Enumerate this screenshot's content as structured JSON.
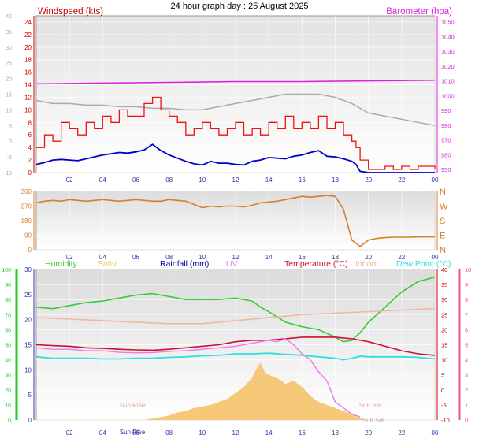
{
  "page": {
    "title": "24 hour graph day : 25 August 2025"
  },
  "colors": {
    "wind": "#ee1111",
    "gust_line": "#0000cc",
    "baro": "#dd22dd",
    "baro_grey": "#aaaaaa",
    "direction": "#d77f25",
    "humidity": "#33cc33",
    "solar": "#f5c060",
    "rain": "#0000aa",
    "uv": "#ee77ee",
    "temperature": "#cc1133",
    "indoor": "#f0b8a0",
    "dewpoint": "#33dddd",
    "axis_blue": "#3333aa",
    "axis_green": "#22cc22",
    "axis_red": "#cc0000",
    "axis_pink": "#ee5599",
    "axis_orange": "#d77f25"
  },
  "chart_data": [
    {
      "type": "line",
      "panel": "wind",
      "title": "Windspeed (kts)",
      "ylabel_right": "Barometer (hpa)",
      "x_ticks": [
        "02",
        "04",
        "06",
        "08",
        "10",
        "12",
        "14",
        "16",
        "18",
        "20",
        "22",
        "00"
      ],
      "y_left_ticks": [
        "24",
        "22",
        "20",
        "18",
        "16",
        "14",
        "12",
        "10",
        "8",
        "6",
        "4",
        "2",
        "0"
      ],
      "y_outer_ticks": [
        "40",
        "35",
        "30",
        "25",
        "20",
        "15",
        "10",
        "5",
        "0",
        "-5",
        "-10"
      ],
      "y_right_ticks": [
        "1050",
        "1040",
        "1030",
        "1020",
        "1010",
        "1000",
        "990",
        "980",
        "970",
        "960",
        "950"
      ],
      "ylim_left": [
        0,
        25
      ],
      "ylim_right": [
        948,
        1054
      ],
      "xlim_hours": [
        0,
        24
      ],
      "series": [
        {
          "key": "gust",
          "x": [
            0,
            0.5,
            1,
            1.5,
            2,
            2.5,
            3,
            3.5,
            4,
            4.5,
            5,
            5.5,
            6,
            6.5,
            7,
            7.5,
            8,
            8.5,
            9,
            9.5,
            10,
            10.5,
            11,
            11.5,
            12,
            12.5,
            13,
            13.5,
            14,
            14.5,
            15,
            15.5,
            16,
            16.5,
            17,
            17.5,
            18,
            18.5,
            19,
            19.25,
            19.5,
            20,
            20.5,
            21,
            21.5,
            22,
            22.5,
            23,
            23.5,
            24
          ],
          "values": [
            4,
            6,
            5,
            8,
            7,
            6,
            8,
            7,
            9,
            8,
            10,
            9,
            9,
            11,
            12,
            10,
            9,
            8,
            6,
            7,
            8,
            7,
            6,
            7,
            8,
            6,
            7,
            6,
            8,
            7,
            9,
            7,
            8,
            7,
            9,
            7,
            8,
            6,
            5,
            4,
            2,
            0.5,
            0.5,
            1,
            0.5,
            1,
            0.5,
            1,
            1,
            0.5
          ]
        },
        {
          "key": "average",
          "x": [
            0,
            0.5,
            1,
            1.5,
            2,
            2.5,
            3,
            3.5,
            4,
            4.5,
            5,
            5.5,
            6,
            6.5,
            7,
            7.5,
            8,
            8.5,
            9,
            9.5,
            10,
            10.5,
            11,
            11.5,
            12,
            12.5,
            13,
            13.5,
            14,
            14.5,
            15,
            15.5,
            16,
            16.5,
            17,
            17.5,
            18,
            18.5,
            19,
            19.25,
            19.5,
            20,
            20.5,
            21,
            21.5,
            22,
            22.5,
            23,
            23.5,
            24
          ],
          "values": [
            1.3,
            1.6,
            2,
            2.1,
            2,
            1.9,
            2.2,
            2.5,
            2.8,
            3,
            3.2,
            3.1,
            3.3,
            3.6,
            4.5,
            3.5,
            2.8,
            2.3,
            1.8,
            1.4,
            1.2,
            1.8,
            1.5,
            1.5,
            1.3,
            1.2,
            1.8,
            2,
            2.4,
            2.3,
            2.2,
            2.6,
            2.8,
            3.2,
            3.5,
            2.6,
            2.5,
            2.2,
            1.8,
            1.3,
            0.2,
            0,
            0,
            0,
            0,
            0,
            0,
            0,
            0,
            0
          ]
        },
        {
          "key": "barometer",
          "axis": "right",
          "x": [
            0,
            4,
            8,
            12,
            16,
            20,
            24
          ],
          "values": [
            1008,
            1008.5,
            1009,
            1009.5,
            1009.5,
            1010,
            1010.5
          ]
        },
        {
          "key": "grey",
          "axis": "outer",
          "x": [
            0,
            1,
            2,
            3,
            4,
            5,
            6,
            7,
            8,
            9,
            10,
            11,
            12,
            13,
            14,
            15,
            16,
            17,
            18,
            19,
            20,
            21,
            22,
            23,
            24
          ],
          "values": [
            13,
            12,
            12,
            11.5,
            11.5,
            11,
            11,
            10.5,
            10.5,
            10,
            10,
            11,
            12,
            13,
            14,
            15,
            15,
            15,
            14,
            12,
            9,
            8,
            7,
            6,
            5
          ]
        }
      ]
    },
    {
      "type": "line",
      "panel": "direction",
      "x_ticks": [
        "02",
        "04",
        "06",
        "08",
        "10",
        "12",
        "14",
        "16",
        "18",
        "20",
        "22",
        "00"
      ],
      "y_left_ticks": [
        "360",
        "270",
        "180",
        "90",
        "0"
      ],
      "y_right_ticks": [
        "N",
        "W",
        "S",
        "E",
        "N"
      ],
      "ylim": [
        0,
        360
      ],
      "xlim_hours": [
        0,
        24
      ],
      "series": [
        {
          "key": "direction",
          "x": [
            0,
            0.5,
            1,
            1.5,
            2,
            2.5,
            3,
            3.5,
            4,
            4.5,
            5,
            5.5,
            6,
            6.5,
            7,
            7.5,
            8,
            8.5,
            9,
            9.5,
            10,
            10.5,
            11,
            11.5,
            12,
            12.5,
            13,
            13.5,
            14,
            14.5,
            15,
            15.5,
            16,
            16.5,
            17,
            17.5,
            18,
            18.5,
            19,
            19.5,
            20,
            20.5,
            21,
            21.5,
            22,
            22.5,
            23,
            23.5,
            24
          ],
          "values": [
            290,
            300,
            305,
            300,
            310,
            305,
            300,
            305,
            310,
            305,
            300,
            305,
            310,
            305,
            300,
            300,
            310,
            305,
            300,
            280,
            260,
            270,
            265,
            270,
            270,
            265,
            275,
            290,
            295,
            300,
            310,
            320,
            330,
            325,
            330,
            335,
            330,
            250,
            60,
            20,
            60,
            70,
            75,
            78,
            78,
            78,
            80,
            80,
            80
          ]
        }
      ]
    },
    {
      "type": "line",
      "panel": "temperature",
      "legend": [
        "Humidity",
        "Solar",
        "Rainfall (mm)",
        "UV",
        "Temperature (°C)",
        "Indoor",
        "Dew Point (°C)"
      ],
      "sun_labels": [
        "Sun Rise",
        "Sun Set",
        "Sun Rise",
        "Sun Set"
      ],
      "x_ticks": [
        "02",
        "04",
        "06",
        "08",
        "10",
        "12",
        "14",
        "16",
        "18",
        "20",
        "22",
        "00"
      ],
      "hum_ticks": [
        "100",
        "90",
        "80",
        "70",
        "60",
        "50",
        "40",
        "30",
        "20",
        "10",
        "0"
      ],
      "rain_ticks": [
        "30",
        "25",
        "20",
        "15",
        "10",
        "5",
        "0"
      ],
      "temp_ticks": [
        "40",
        "35",
        "30",
        "25",
        "20",
        "15",
        "10",
        "5",
        "0",
        "-5",
        "-10"
      ],
      "uv_ticks": [
        "10",
        "9",
        "8",
        "7",
        "6",
        "5",
        "4",
        "3",
        "2",
        "1",
        "0"
      ],
      "ylim_temp": [
        -10,
        40
      ],
      "xlim_hours": [
        0,
        24
      ],
      "series": [
        {
          "key": "humidity",
          "axis": "humidity",
          "x": [
            0,
            1,
            2,
            3,
            4,
            5,
            6,
            7,
            8,
            9,
            10,
            11,
            12,
            13,
            13.5,
            14,
            15,
            16,
            17,
            18,
            18.5,
            19,
            19.5,
            20,
            21,
            22,
            23,
            24
          ],
          "values": [
            75,
            74,
            76,
            78,
            79,
            81,
            83,
            84,
            82,
            80,
            80,
            80,
            81,
            79,
            75,
            72,
            65,
            62,
            60,
            55,
            52,
            53,
            58,
            65,
            75,
            85,
            92,
            95
          ]
        },
        {
          "key": "indoor",
          "axis": "temp",
          "x": [
            0,
            2,
            4,
            6,
            8,
            10,
            12,
            14,
            16,
            18,
            20,
            22,
            24
          ],
          "values": [
            24,
            23.5,
            23,
            22.5,
            22,
            22,
            23,
            24,
            25,
            25.5,
            26,
            26.5,
            27
          ]
        },
        {
          "key": "temperature",
          "axis": "temp",
          "x": [
            0,
            1,
            2,
            3,
            4,
            5,
            6,
            7,
            8,
            9,
            10,
            11,
            12,
            13,
            14,
            15,
            16,
            17,
            18,
            19,
            20,
            21,
            22,
            23,
            24
          ],
          "values": [
            15,
            14.7,
            14.5,
            14,
            13.8,
            13.5,
            13.3,
            13.2,
            13.5,
            14,
            14.5,
            15,
            16,
            16.5,
            16.5,
            17,
            17.5,
            17.5,
            17.5,
            17,
            16,
            14.5,
            13,
            12,
            11.5
          ]
        },
        {
          "key": "uvline",
          "axis": "temp",
          "x": [
            0,
            1,
            2,
            3,
            4,
            5,
            6,
            7,
            8,
            9,
            10,
            11,
            12,
            12.5,
            13,
            13.5,
            14,
            14.5,
            15,
            15.5,
            16,
            16.5,
            17,
            17.5,
            18,
            18.5,
            19,
            19.5
          ],
          "values": [
            14,
            13.5,
            13.5,
            13,
            13,
            12.5,
            12.3,
            12.4,
            12.8,
            13,
            13.5,
            14,
            14.5,
            15,
            15.5,
            16,
            16.5,
            16,
            17,
            15,
            12,
            10,
            6,
            3,
            -4,
            -6,
            -8,
            -9
          ]
        },
        {
          "key": "dewpoint",
          "axis": "temp",
          "x": [
            0,
            1,
            2,
            3,
            4,
            5,
            6,
            7,
            8,
            9,
            10,
            11,
            12,
            13,
            14,
            15,
            16,
            17,
            18,
            18.5,
            19,
            19.5,
            20,
            21,
            22,
            23,
            24
          ],
          "values": [
            11,
            10.5,
            10.5,
            10.5,
            10.3,
            10.3,
            10.5,
            10.5,
            10.8,
            11,
            11.3,
            11.5,
            12,
            12,
            12.2,
            11.8,
            11.5,
            11,
            10.5,
            10,
            10.5,
            11.2,
            11,
            11,
            11,
            10.8,
            10.3
          ]
        },
        {
          "key": "solar",
          "axis": "temp",
          "x": [
            6.5,
            7,
            7.5,
            8,
            8.5,
            9,
            9.5,
            10,
            10.5,
            11,
            11.5,
            12,
            12.5,
            13,
            13.25,
            13.5,
            13.75,
            14,
            14.5,
            15,
            15.5,
            16,
            16.5,
            17,
            17.5,
            18,
            18.5,
            19,
            19.5,
            20
          ],
          "values": [
            -10,
            -9.5,
            -9,
            -8.5,
            -7.5,
            -7,
            -6,
            -5.5,
            -5,
            -4,
            -3,
            -1,
            1,
            4,
            7,
            9,
            6,
            5,
            4,
            2,
            3,
            1,
            -2,
            -4,
            -5,
            -6,
            -7,
            -8,
            -9.5,
            -10
          ]
        }
      ]
    }
  ]
}
